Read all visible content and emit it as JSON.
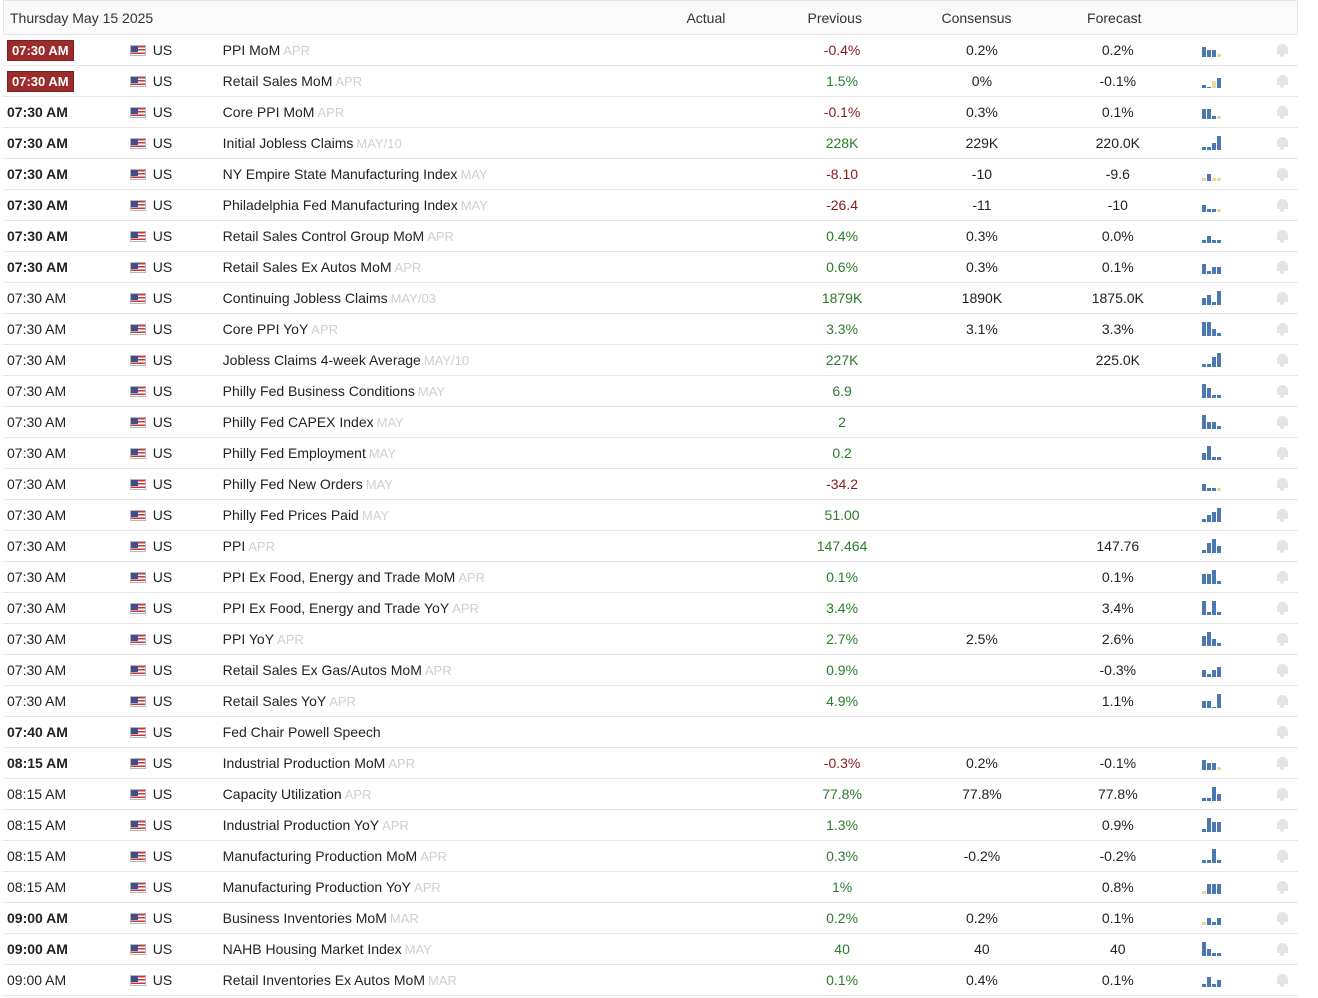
{
  "header": {
    "date": "Thursday May 15 2025",
    "actual": "Actual",
    "previous": "Previous",
    "consensus": "Consensus",
    "forecast": "Forecast"
  },
  "colors": {
    "positive": "#2a7d2a",
    "negative": "#8b1a1a",
    "bar": "#4a78b0",
    "bar_light": "#f2d6a2",
    "badge": "#9c2b2b"
  },
  "rows": [
    {
      "time": "07:30 AM",
      "style": "badge",
      "country": "US",
      "event": "PPI MoM",
      "ref": "APR",
      "actual": "",
      "previous": "-0.4%",
      "prev_dir": "neg",
      "consensus": "0.2%",
      "forecast": "0.2%",
      "spark": [
        3,
        2,
        2,
        1
      ],
      "spark_light": [
        3
      ]
    },
    {
      "time": "07:30 AM",
      "style": "badge",
      "country": "US",
      "event": "Retail Sales MoM",
      "ref": "APR",
      "actual": "",
      "previous": "1.5%",
      "prev_dir": "pos",
      "consensus": "0%",
      "forecast": "-0.1%",
      "spark": [
        1,
        0,
        2,
        3
      ],
      "spark_light": [
        2
      ]
    },
    {
      "time": "07:30 AM",
      "style": "bold",
      "country": "US",
      "event": "Core PPI MoM",
      "ref": "APR",
      "actual": "",
      "previous": "-0.1%",
      "prev_dir": "neg",
      "consensus": "0.3%",
      "forecast": "0.1%",
      "spark": [
        3,
        3,
        1,
        1
      ],
      "spark_light": [
        3
      ]
    },
    {
      "time": "07:30 AM",
      "style": "bold",
      "country": "US",
      "event": "Initial Jobless Claims",
      "ref": "MAY/10",
      "actual": "",
      "previous": "228K",
      "prev_dir": "pos",
      "consensus": "229K",
      "forecast": "220.0K",
      "spark": [
        1,
        1,
        2,
        4
      ],
      "spark_light": []
    },
    {
      "time": "07:30 AM",
      "style": "bold",
      "country": "US",
      "event": "NY Empire State Manufacturing Index",
      "ref": "MAY",
      "actual": "",
      "previous": "-8.10",
      "prev_dir": "neg",
      "consensus": "-10",
      "forecast": "-9.6",
      "spark": [
        1,
        2,
        1,
        1
      ],
      "spark_light": [
        0,
        2,
        3
      ]
    },
    {
      "time": "07:30 AM",
      "style": "bold",
      "country": "US",
      "event": "Philadelphia Fed Manufacturing Index",
      "ref": "MAY",
      "actual": "",
      "previous": "-26.4",
      "prev_dir": "neg",
      "consensus": "-11",
      "forecast": "-10",
      "spark": [
        2,
        1,
        1,
        1
      ],
      "spark_light": [
        3
      ]
    },
    {
      "time": "07:30 AM",
      "style": "bold",
      "country": "US",
      "event": "Retail Sales Control Group MoM",
      "ref": "APR",
      "actual": "",
      "previous": "0.4%",
      "prev_dir": "pos",
      "consensus": "0.3%",
      "forecast": "0.0%",
      "spark": [
        1,
        2,
        1,
        1
      ],
      "spark_light": []
    },
    {
      "time": "07:30 AM",
      "style": "bold",
      "country": "US",
      "event": "Retail Sales Ex Autos MoM",
      "ref": "APR",
      "actual": "",
      "previous": "0.6%",
      "prev_dir": "pos",
      "consensus": "0.3%",
      "forecast": "0.1%",
      "spark": [
        3,
        1,
        2,
        2
      ],
      "spark_light": []
    },
    {
      "time": "07:30 AM",
      "style": "normal",
      "country": "US",
      "event": "Continuing Jobless Claims",
      "ref": "MAY/03",
      "actual": "",
      "previous": "1879K",
      "prev_dir": "pos",
      "consensus": "1890K",
      "forecast": "1875.0K",
      "spark": [
        2,
        3,
        1,
        4
      ],
      "spark_light": []
    },
    {
      "time": "07:30 AM",
      "style": "normal",
      "country": "US",
      "event": "Core PPI YoY",
      "ref": "APR",
      "actual": "",
      "previous": "3.3%",
      "prev_dir": "pos",
      "consensus": "3.1%",
      "forecast": "3.3%",
      "spark": [
        4,
        4,
        2,
        1
      ],
      "spark_light": []
    },
    {
      "time": "07:30 AM",
      "style": "normal",
      "country": "US",
      "event": "Jobless Claims 4-week Average",
      "ref": "MAY/10",
      "actual": "",
      "previous": "227K",
      "prev_dir": "pos",
      "consensus": "",
      "forecast": "225.0K",
      "spark": [
        1,
        1,
        3,
        4
      ],
      "spark_light": []
    },
    {
      "time": "07:30 AM",
      "style": "normal",
      "country": "US",
      "event": "Philly Fed Business Conditions",
      "ref": "MAY",
      "actual": "",
      "previous": "6.9",
      "prev_dir": "pos",
      "consensus": "",
      "forecast": "",
      "spark": [
        4,
        3,
        1,
        1
      ],
      "spark_light": []
    },
    {
      "time": "07:30 AM",
      "style": "normal",
      "country": "US",
      "event": "Philly Fed CAPEX Index",
      "ref": "MAY",
      "actual": "",
      "previous": "2",
      "prev_dir": "pos",
      "consensus": "",
      "forecast": "",
      "spark": [
        4,
        2,
        2,
        1
      ],
      "spark_light": []
    },
    {
      "time": "07:30 AM",
      "style": "normal",
      "country": "US",
      "event": "Philly Fed Employment",
      "ref": "MAY",
      "actual": "",
      "previous": "0.2",
      "prev_dir": "pos",
      "consensus": "",
      "forecast": "",
      "spark": [
        2,
        4,
        1,
        1
      ],
      "spark_light": []
    },
    {
      "time": "07:30 AM",
      "style": "normal",
      "country": "US",
      "event": "Philly Fed New Orders",
      "ref": "MAY",
      "actual": "",
      "previous": "-34.2",
      "prev_dir": "neg",
      "consensus": "",
      "forecast": "",
      "spark": [
        2,
        1,
        1,
        1
      ],
      "spark_light": [
        3
      ]
    },
    {
      "time": "07:30 AM",
      "style": "normal",
      "country": "US",
      "event": "Philly Fed Prices Paid",
      "ref": "MAY",
      "actual": "",
      "previous": "51.00",
      "prev_dir": "pos",
      "consensus": "",
      "forecast": "",
      "spark": [
        1,
        2,
        3,
        4
      ],
      "spark_light": []
    },
    {
      "time": "07:30 AM",
      "style": "normal",
      "country": "US",
      "event": "PPI",
      "ref": "APR",
      "actual": "",
      "previous": "147.464",
      "prev_dir": "pos",
      "consensus": "",
      "forecast": "147.76",
      "spark": [
        1,
        3,
        4,
        2
      ],
      "spark_light": []
    },
    {
      "time": "07:30 AM",
      "style": "normal",
      "country": "US",
      "event": "PPI Ex Food, Energy and Trade MoM",
      "ref": "APR",
      "actual": "",
      "previous": "0.1%",
      "prev_dir": "pos",
      "consensus": "",
      "forecast": "0.1%",
      "spark": [
        3,
        3,
        4,
        1
      ],
      "spark_light": []
    },
    {
      "time": "07:30 AM",
      "style": "normal",
      "country": "US",
      "event": "PPI Ex Food, Energy and Trade YoY",
      "ref": "APR",
      "actual": "",
      "previous": "3.4%",
      "prev_dir": "pos",
      "consensus": "",
      "forecast": "3.4%",
      "spark": [
        4,
        1,
        4,
        1
      ],
      "spark_light": []
    },
    {
      "time": "07:30 AM",
      "style": "normal",
      "country": "US",
      "event": "PPI YoY",
      "ref": "APR",
      "actual": "",
      "previous": "2.7%",
      "prev_dir": "pos",
      "consensus": "2.5%",
      "forecast": "2.6%",
      "spark": [
        3,
        4,
        2,
        1
      ],
      "spark_light": []
    },
    {
      "time": "07:30 AM",
      "style": "normal",
      "country": "US",
      "event": "Retail Sales Ex Gas/Autos MoM",
      "ref": "APR",
      "actual": "",
      "previous": "0.9%",
      "prev_dir": "pos",
      "consensus": "",
      "forecast": "-0.3%",
      "spark": [
        2,
        1,
        2,
        3
      ],
      "spark_light": []
    },
    {
      "time": "07:30 AM",
      "style": "normal",
      "country": "US",
      "event": "Retail Sales YoY",
      "ref": "APR",
      "actual": "",
      "previous": "4.9%",
      "prev_dir": "pos",
      "consensus": "",
      "forecast": "1.1%",
      "spark": [
        2,
        2,
        0,
        4
      ],
      "spark_light": []
    },
    {
      "time": "07:40 AM",
      "style": "bold",
      "country": "US",
      "event": "Fed Chair Powell Speech",
      "ref": "",
      "actual": "",
      "previous": "",
      "prev_dir": "pos",
      "consensus": "",
      "forecast": "",
      "spark": [],
      "spark_light": []
    },
    {
      "time": "08:15 AM",
      "style": "bold",
      "country": "US",
      "event": "Industrial Production MoM",
      "ref": "APR",
      "actual": "",
      "previous": "-0.3%",
      "prev_dir": "neg",
      "consensus": "0.2%",
      "forecast": "-0.1%",
      "spark": [
        3,
        2,
        2,
        1
      ],
      "spark_light": [
        3
      ]
    },
    {
      "time": "08:15 AM",
      "style": "normal",
      "country": "US",
      "event": "Capacity Utilization",
      "ref": "APR",
      "actual": "",
      "previous": "77.8%",
      "prev_dir": "pos",
      "consensus": "77.8%",
      "forecast": "77.8%",
      "spark": [
        1,
        1,
        4,
        2
      ],
      "spark_light": []
    },
    {
      "time": "08:15 AM",
      "style": "normal",
      "country": "US",
      "event": "Industrial Production YoY",
      "ref": "APR",
      "actual": "",
      "previous": "1.3%",
      "prev_dir": "pos",
      "consensus": "",
      "forecast": "0.9%",
      "spark": [
        1,
        4,
        3,
        3
      ],
      "spark_light": []
    },
    {
      "time": "08:15 AM",
      "style": "normal",
      "country": "US",
      "event": "Manufacturing Production MoM",
      "ref": "APR",
      "actual": "",
      "previous": "0.3%",
      "prev_dir": "pos",
      "consensus": "-0.2%",
      "forecast": "-0.2%",
      "spark": [
        1,
        1,
        4,
        1
      ],
      "spark_light": []
    },
    {
      "time": "08:15 AM",
      "style": "normal",
      "country": "US",
      "event": "Manufacturing Production YoY",
      "ref": "APR",
      "actual": "",
      "previous": "1%",
      "prev_dir": "pos",
      "consensus": "",
      "forecast": "0.8%",
      "spark": [
        1,
        3,
        3,
        3
      ],
      "spark_light": [
        0
      ]
    },
    {
      "time": "09:00 AM",
      "style": "bold",
      "country": "US",
      "event": "Business Inventories MoM",
      "ref": "MAR",
      "actual": "",
      "previous": "0.2%",
      "prev_dir": "pos",
      "consensus": "0.2%",
      "forecast": "0.1%",
      "spark": [
        1,
        2,
        1,
        2
      ],
      "spark_light": [
        0
      ]
    },
    {
      "time": "09:00 AM",
      "style": "bold",
      "country": "US",
      "event": "NAHB Housing Market Index",
      "ref": "MAY",
      "actual": "",
      "previous": "40",
      "prev_dir": "pos",
      "consensus": "40",
      "forecast": "40",
      "spark": [
        4,
        2,
        1,
        1
      ],
      "spark_light": []
    },
    {
      "time": "09:00 AM",
      "style": "normal",
      "country": "US",
      "event": "Retail Inventories Ex Autos MoM",
      "ref": "MAR",
      "actual": "",
      "previous": "0.1%",
      "prev_dir": "pos",
      "consensus": "0.4%",
      "forecast": "0.1%",
      "spark": [
        1,
        3,
        1,
        2
      ],
      "spark_light": []
    }
  ]
}
